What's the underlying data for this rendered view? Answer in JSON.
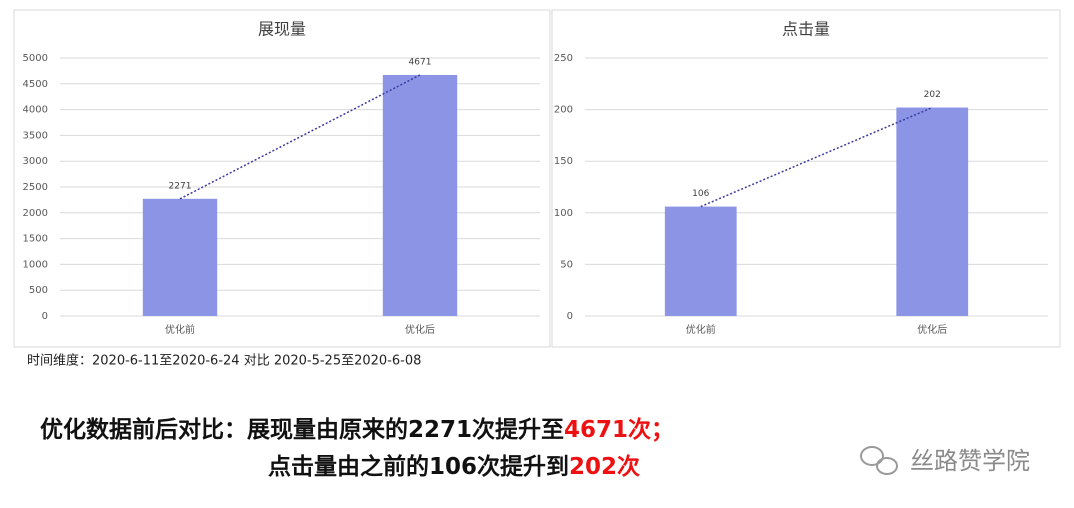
{
  "chart_data": [
    {
      "type": "bar",
      "title": "展现量",
      "categories": [
        "优化前",
        "优化后"
      ],
      "values": [
        2271,
        4671
      ],
      "color": "#8c94e6",
      "ylim": [
        0,
        5000
      ],
      "yticks": [
        0,
        500,
        1000,
        1500,
        2000,
        2500,
        3000,
        3500,
        4000,
        4500,
        5000
      ],
      "grid": true,
      "trendline": true,
      "trendline_color": "#3b3b9e"
    },
    {
      "type": "bar",
      "title": "点击量",
      "categories": [
        "优化前",
        "优化后"
      ],
      "values": [
        106,
        202
      ],
      "color": "#8c94e6",
      "ylim": [
        0,
        250
      ],
      "yticks": [
        0,
        50,
        100,
        150,
        200,
        250
      ],
      "grid": true,
      "trendline": true,
      "trendline_color": "#3b3b9e"
    }
  ],
  "caption": "时间维度：2020-6-11至2020-6-24 对比 2020-5-25至2020-6-08",
  "summary": {
    "line1": [
      "优化数据前后对比：展现量由原来的2271次提升至",
      "4671次；"
    ],
    "line2": [
      "点击量由之前的106次提升到",
      "202次"
    ]
  },
  "watermark": "丝路赞学院"
}
